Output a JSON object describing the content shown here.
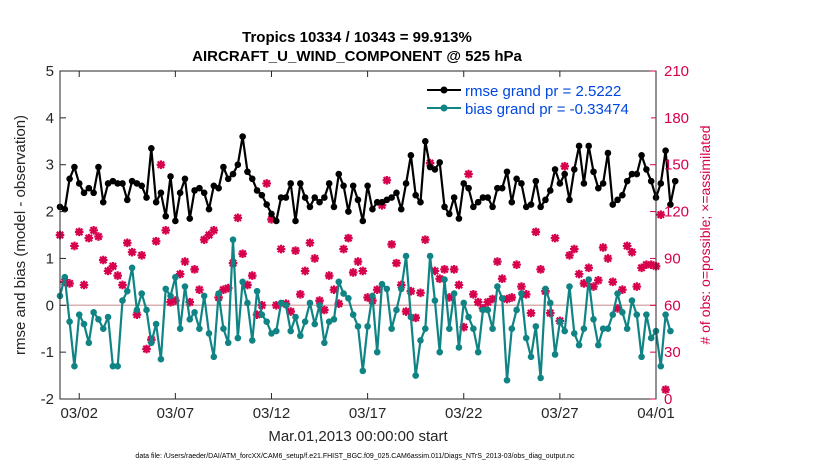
{
  "chart_data": {
    "type": "line",
    "title": "Tropics 10334 / 10343 = 99.913%",
    "subtitle": "AIRCRAFT_U_WIND_COMPONENT @ 525 hPa",
    "xlabel": "Mar.01,2013 00:00:00 start",
    "ylabel": "rmse and bias (model - observation)",
    "y2label": "# of obs: o=possible; ×=assimilated",
    "xlim": [
      0,
      31
    ],
    "ylim": [
      -2,
      5
    ],
    "y2lim": [
      0,
      210
    ],
    "x_ticks": [
      {
        "x": 1,
        "label": "03/02"
      },
      {
        "x": 6,
        "label": "03/07"
      },
      {
        "x": 11,
        "label": "03/12"
      },
      {
        "x": 16,
        "label": "03/17"
      },
      {
        "x": 21,
        "label": "03/22"
      },
      {
        "x": 26,
        "label": "03/27"
      },
      {
        "x": 31,
        "label": "04/01"
      }
    ],
    "y_ticks": [
      "-2",
      "-1",
      "0",
      "1",
      "2",
      "3",
      "4",
      "5"
    ],
    "y2_ticks": [
      "0",
      "30",
      "60",
      "90",
      "120",
      "150",
      "180",
      "210"
    ],
    "reference_line_y": 0,
    "x_step": 0.25,
    "series": [
      {
        "name": "rmse grand pr = 2.5222",
        "color": "#000000",
        "axis": "left",
        "values": [
          2.1,
          2.05,
          2.7,
          2.95,
          2.6,
          2.4,
          2.5,
          2.4,
          2.95,
          2.2,
          2.6,
          2.65,
          2.6,
          2.6,
          2.25,
          2.65,
          2.6,
          2.55,
          2.3,
          3.35,
          2.2,
          2.4,
          1.9,
          2.75,
          1.8,
          2.4,
          2.7,
          1.85,
          2.45,
          2.5,
          2.4,
          2.05,
          2.55,
          2.5,
          2.95,
          2.7,
          2.8,
          3.0,
          3.6,
          2.85,
          2.7,
          2.45,
          2.35,
          2.15,
          1.95,
          1.8,
          2.3,
          2.3,
          2.6,
          1.8,
          2.6,
          2.3,
          2.1,
          2.3,
          2.2,
          2.3,
          2.6,
          2.1,
          2.8,
          2.55,
          2.0,
          2.55,
          2.25,
          1.8,
          2.55,
          2.05,
          2.2,
          2.2,
          2.25,
          2.3,
          2.4,
          2.05,
          2.6,
          3.2,
          2.35,
          2.2,
          3.5,
          2.95,
          2.9,
          3.05,
          2.1,
          1.95,
          2.3,
          1.85,
          2.6,
          2.5,
          2.1,
          2.2,
          2.3,
          2.3,
          2.1,
          2.5,
          2.5,
          2.85,
          2.2,
          2.7,
          2.6,
          2.1,
          2.15,
          2.65,
          2.1,
          2.25,
          2.45,
          2.9,
          2.6,
          2.8,
          2.25,
          2.9,
          3.4,
          2.6,
          3.4,
          2.85,
          2.5,
          2.6,
          3.25,
          2.15,
          2.25,
          2.35,
          2.65,
          2.8,
          2.8,
          3.2,
          2.9,
          2.65,
          2.3,
          2.6,
          3.3,
          2.15,
          2.65
        ]
      },
      {
        "name": "bias grand pr = -0.33474",
        "color": "#108484",
        "axis": "left",
        "values": [
          0.2,
          0.6,
          -0.35,
          -1.3,
          -0.2,
          -0.4,
          -0.8,
          -0.15,
          -0.3,
          -0.5,
          -0.25,
          -1.3,
          -1.3,
          0.1,
          0.3,
          0.8,
          -0.1,
          0.25,
          -0.1,
          -0.8,
          -0.4,
          -1.15,
          0.35,
          0.2,
          0.6,
          -0.5,
          0.4,
          -0.3,
          -0.15,
          -0.5,
          0.2,
          -0.6,
          -1.1,
          0.25,
          -0.5,
          -0.8,
          1.4,
          -0.7,
          0.5,
          0.05,
          -0.75,
          0.3,
          -0.2,
          -0.35,
          -0.6,
          -0.55,
          0.05,
          0.0,
          -0.55,
          -0.25,
          -0.65,
          -0.35,
          0.05,
          -0.4,
          0.0,
          -0.8,
          -0.35,
          -0.3,
          0.5,
          0.25,
          0.15,
          -0.2,
          -0.45,
          -1.4,
          -0.45,
          0.2,
          -1.0,
          0.45,
          0.35,
          -0.5,
          -0.1,
          0.35,
          1.05,
          -0.25,
          -1.5,
          -0.75,
          -0.5,
          1.05,
          0.1,
          -1.0,
          0.55,
          -0.5,
          0.25,
          -0.9,
          0.05,
          -0.25,
          -0.5,
          -1.0,
          -0.1,
          -0.1,
          -0.5,
          0.4,
          0.15,
          -1.6,
          -0.5,
          -0.1,
          0.25,
          -0.7,
          -1.1,
          -0.45,
          -1.55,
          0.35,
          0.05,
          -1.05,
          -0.35,
          -0.55,
          0.4,
          -0.6,
          -0.85,
          -0.5,
          0.55,
          -0.3,
          -0.85,
          -0.5,
          -0.5,
          -0.2,
          0.25,
          -0.15,
          -0.5,
          0.1,
          -0.2,
          -1.1,
          -0.2,
          -0.7,
          -0.55,
          -1.3,
          -0.2,
          -0.55
        ]
      },
      {
        "name": "assimilated",
        "color": "#d6004c",
        "axis": "right",
        "marker": "cross",
        "values": [
          105,
          75,
          74,
          98,
          107,
          73,
          103,
          108,
          104,
          89,
          82,
          85,
          79,
          73,
          100,
          94,
          54,
          92,
          32,
          38,
          101,
          150,
          108,
          62,
          63,
          80,
          88,
          62,
          83,
          70,
          102,
          105,
          108,
          65,
          70,
          71,
          87,
          116,
          93,
          73,
          79,
          54,
          60,
          138,
          115,
          60,
          96,
          61,
          56,
          95,
          67,
          82,
          100,
          90,
          63,
          57,
          79,
          70,
          61,
          96,
          103,
          81,
          88,
          82,
          65,
          63,
          70,
          124,
          140,
          99,
          87,
          73,
          56,
          69,
          52,
          68,
          102,
          151,
          82,
          77,
          83,
          65,
          83,
          73,
          46,
          144,
          67,
          62,
          58,
          62,
          64,
          88,
          77,
          64,
          65,
          86,
          72,
          67,
          55,
          107,
          83,
          69,
          55,
          103,
          50,
          149,
          92,
          96,
          80,
          74,
          84,
          72,
          76,
          97,
          90,
          75,
          58,
          70,
          98,
          94,
          72,
          84,
          86,
          86,
          85,
          118,
          6
        ]
      }
    ],
    "legend": {
      "position": "top-right",
      "entries": [
        "rmse grand pr = 2.5222",
        "bias grand pr = -0.33474"
      ]
    }
  },
  "footer": "data file: /Users/raeder/DAI/ATM_forcXX/CAM6_setup/f.e21.FHIST_BGC.f09_025.CAM6assim.011/Diags_NTrS_2013-03/obs_diag_output.nc"
}
